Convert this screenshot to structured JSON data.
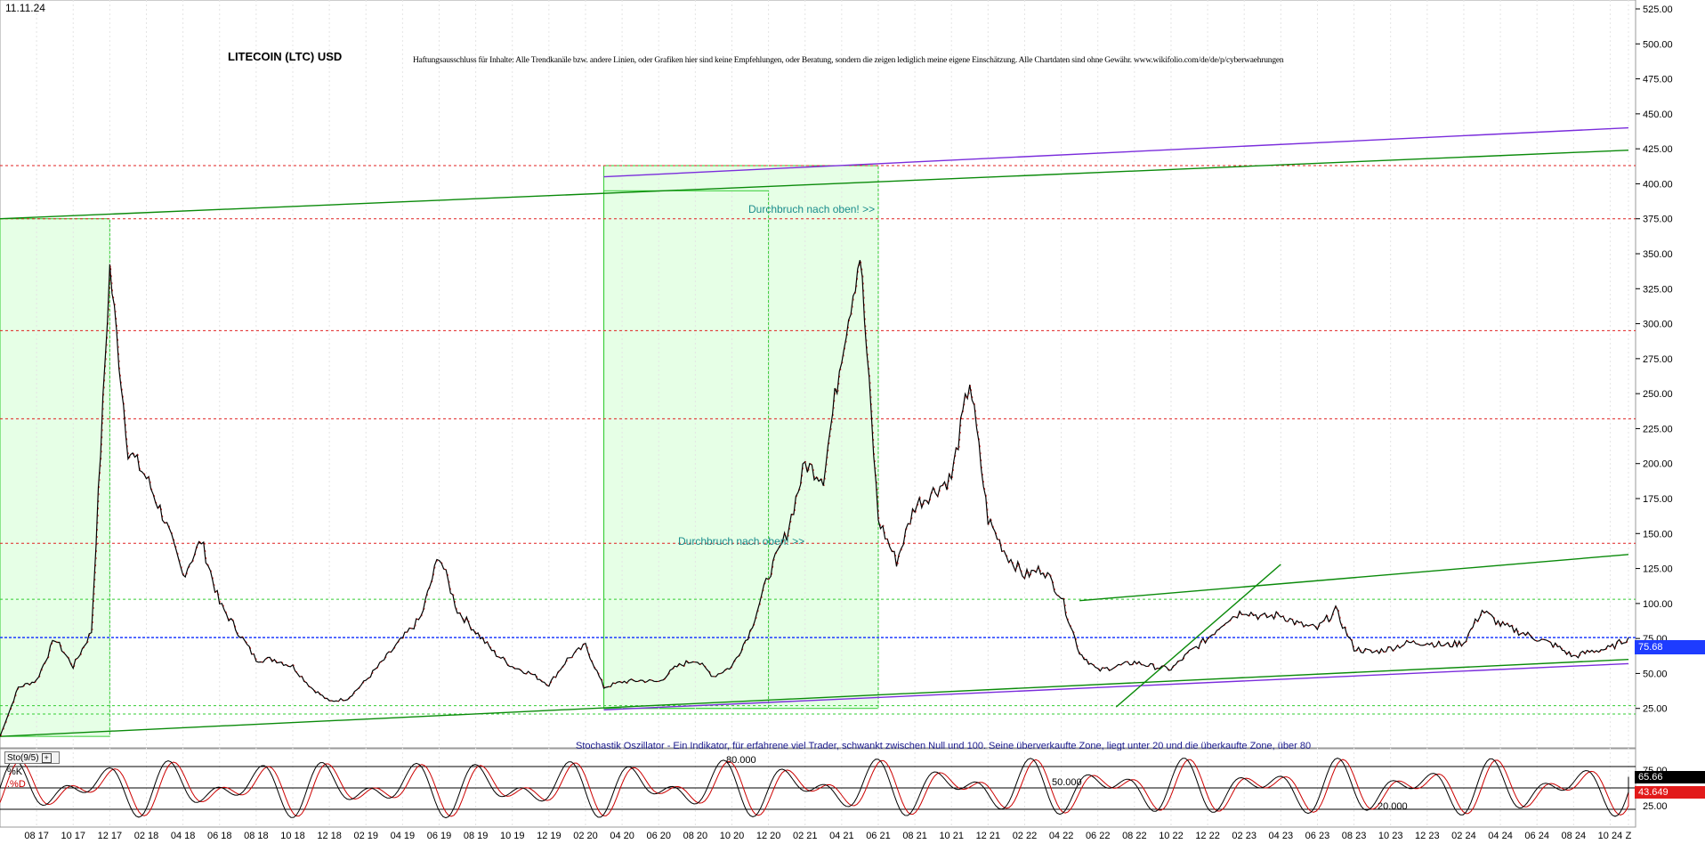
{
  "date_label": "11.11.24",
  "title": "LITECOIN (LTC) USD",
  "disclaimer": "Haftungsausschluss für Inhalte: Alle Trendkanäle bzw. andere Linien, oder Grafiken hier sind keine Empfehlungen, oder Beratung, sondern die zeigen lediglich meine eigene Einschätzung. Alle Chartdaten sind ohne Gewähr. www.wikifolio.com/de/de/p/cyberwaehrungen",
  "annotations": {
    "breakout_top": "Durchbruch nach oben! >>",
    "breakout_mid": "Durchbruch nach oben! >>",
    "oscillator_note": "Stochastik Oszillator - Ein Indikator, für erfahrene viel Trader, schwankt zwischen Null und 100. Seine überverkaufte Zone, liegt unter 20 und die überkaufte Zone, über 80"
  },
  "indicator": {
    "name": "Sto(9/5)",
    "k_label": "%K",
    "d_label": ".%D",
    "levels_labels": [
      "80.000",
      "50.000",
      "20.000"
    ],
    "k_value": "65.66",
    "d_value": "43.649"
  },
  "last_price_label": "75.68",
  "colors": {
    "candles": "#000000",
    "candle_accent": "#cc0000",
    "channel_green": "#0a8a0a",
    "channel_purple": "#7a2cdc",
    "support_dotted_blue": "#1e3cff",
    "resistance_dotted_red": "#e02020",
    "zone_fill": "#e6ffe6",
    "zone_border": "#33cc33"
  },
  "chart_data": {
    "type": "line",
    "title": "LITECOIN (LTC) USD",
    "xlabel": "",
    "ylabel": "",
    "ylim": [
      0,
      525
    ],
    "y_ticks": [
      25,
      50,
      75,
      100,
      125,
      150,
      175,
      200,
      225,
      250,
      275,
      300,
      325,
      350,
      375,
      400,
      425,
      450,
      475,
      500,
      525
    ],
    "y_tick_labels": [
      "25.00",
      "50.00",
      "75.00",
      "100.00",
      "125.00",
      "150.00",
      "175.00",
      "200.00",
      "225.00",
      "250.00",
      "275.00",
      "300.00",
      "325.00",
      "350.00",
      "375.00",
      "400.00",
      "425.00",
      "450.00",
      "475.00",
      "500.00",
      "525.00"
    ],
    "x_tick_labels": [
      "08 17",
      "10 17",
      "12 17",
      "02 18",
      "04 18",
      "06 18",
      "08 18",
      "10 18",
      "12 18",
      "02 19",
      "04 19",
      "06 19",
      "08 19",
      "10 19",
      "12 19",
      "02 20",
      "04 20",
      "06 20",
      "08 20",
      "10 20",
      "12 20",
      "02 21",
      "04 21",
      "06 21",
      "08 21",
      "10 21",
      "12 21",
      "02 22",
      "04 22",
      "06 22",
      "08 22",
      "10 22",
      "12 22",
      "02 23",
      "04 23",
      "06 23",
      "08 23",
      "10 23",
      "12 23",
      "02 24",
      "04 24",
      "06 24",
      "08 24",
      "10 24",
      "Z"
    ],
    "x_domain": [
      "2017-06",
      "2024-11"
    ],
    "grid": true,
    "series": [
      {
        "kind": "price",
        "points": [
          [
            "2017-06",
            5
          ],
          [
            "2017-07",
            40
          ],
          [
            "2017-08",
            45
          ],
          [
            "2017-09",
            75
          ],
          [
            "2017-10",
            55
          ],
          [
            "2017-11",
            80
          ],
          [
            "2017-12",
            340
          ],
          [
            "2018-01",
            210
          ],
          [
            "2018-02",
            190
          ],
          [
            "2018-03",
            160
          ],
          [
            "2018-04",
            120
          ],
          [
            "2018-05",
            145
          ],
          [
            "2018-06",
            100
          ],
          [
            "2018-07",
            80
          ],
          [
            "2018-08",
            60
          ],
          [
            "2018-09",
            60
          ],
          [
            "2018-10",
            55
          ],
          [
            "2018-11",
            40
          ],
          [
            "2018-12",
            30
          ],
          [
            "2019-01",
            32
          ],
          [
            "2019-02",
            45
          ],
          [
            "2019-03",
            60
          ],
          [
            "2019-04",
            75
          ],
          [
            "2019-05",
            90
          ],
          [
            "2019-06",
            135
          ],
          [
            "2019-07",
            95
          ],
          [
            "2019-08",
            80
          ],
          [
            "2019-09",
            65
          ],
          [
            "2019-10",
            55
          ],
          [
            "2019-11",
            50
          ],
          [
            "2019-12",
            42
          ],
          [
            "2020-01",
            60
          ],
          [
            "2020-02",
            70
          ],
          [
            "2020-03",
            40
          ],
          [
            "2020-04",
            44
          ],
          [
            "2020-05",
            45
          ],
          [
            "2020-06",
            44
          ],
          [
            "2020-07",
            55
          ],
          [
            "2020-08",
            60
          ],
          [
            "2020-09",
            48
          ],
          [
            "2020-10",
            55
          ],
          [
            "2020-11",
            80
          ],
          [
            "2020-12",
            120
          ],
          [
            "2021-01",
            150
          ],
          [
            "2021-02",
            200
          ],
          [
            "2021-03",
            190
          ],
          [
            "2021-04",
            280
          ],
          [
            "2021-05",
            350
          ],
          [
            "2021-06",
            160
          ],
          [
            "2021-07",
            130
          ],
          [
            "2021-08",
            170
          ],
          [
            "2021-09",
            180
          ],
          [
            "2021-10",
            190
          ],
          [
            "2021-11",
            260
          ],
          [
            "2021-12",
            160
          ],
          [
            "2022-01",
            135
          ],
          [
            "2022-02",
            120
          ],
          [
            "2022-03",
            125
          ],
          [
            "2022-04",
            105
          ],
          [
            "2022-05",
            65
          ],
          [
            "2022-06",
            52
          ],
          [
            "2022-07",
            55
          ],
          [
            "2022-08",
            58
          ],
          [
            "2022-09",
            55
          ],
          [
            "2022-10",
            53
          ],
          [
            "2022-11",
            65
          ],
          [
            "2022-12",
            75
          ],
          [
            "2023-01",
            88
          ],
          [
            "2023-02",
            95
          ],
          [
            "2023-03",
            90
          ],
          [
            "2023-04",
            92
          ],
          [
            "2023-05",
            85
          ],
          [
            "2023-06",
            82
          ],
          [
            "2023-07",
            95
          ],
          [
            "2023-08",
            68
          ],
          [
            "2023-09",
            65
          ],
          [
            "2023-10",
            68
          ],
          [
            "2023-11",
            72
          ],
          [
            "2023-12",
            72
          ],
          [
            "2024-01",
            70
          ],
          [
            "2024-02",
            72
          ],
          [
            "2024-03",
            95
          ],
          [
            "2024-04",
            85
          ],
          [
            "2024-05",
            80
          ],
          [
            "2024-06",
            75
          ],
          [
            "2024-07",
            70
          ],
          [
            "2024-08",
            62
          ],
          [
            "2024-09",
            66
          ],
          [
            "2024-10",
            68
          ],
          [
            "2024-11",
            75.68
          ]
        ]
      }
    ],
    "horizontal_levels": [
      {
        "style": "dotted-blue",
        "y": 75.68
      },
      {
        "style": "dotted-red",
        "y": 375
      },
      {
        "style": "dotted-red",
        "y": 413
      },
      {
        "style": "dotted-red",
        "y": 295
      },
      {
        "style": "dotted-red",
        "y": 232
      },
      {
        "style": "dotted-red",
        "y": 143
      },
      {
        "style": "dotted-green",
        "y": 103
      },
      {
        "style": "dotted-green",
        "y": 27
      },
      {
        "style": "dotted-green",
        "y": 21
      }
    ],
    "trend_lines": [
      {
        "color": "green",
        "from": [
          "2017-06",
          375
        ],
        "to": [
          "2024-11",
          424
        ]
      },
      {
        "color": "purple",
        "from": [
          "2020-03",
          405
        ],
        "to": [
          "2024-11",
          440
        ]
      },
      {
        "color": "green",
        "from": [
          "2017-06",
          5
        ],
        "to": [
          "2024-11",
          60
        ]
      },
      {
        "color": "purple",
        "from": [
          "2020-03",
          24
        ],
        "to": [
          "2024-11",
          57
        ]
      },
      {
        "color": "green",
        "from": [
          "2022-05",
          102
        ],
        "to": [
          "2024-11",
          135
        ]
      },
      {
        "color": "green",
        "from": [
          "2022-07",
          26
        ],
        "to": [
          "2023-04",
          128
        ]
      }
    ],
    "zones": [
      {
        "from": "2017-06",
        "to": "2017-12",
        "y_from": 5,
        "y_to": 375
      },
      {
        "from": "2020-03",
        "to": "2021-06",
        "y_from": 25,
        "y_to": 413
      },
      {
        "from": "2020-03",
        "to": "2020-12",
        "y_from": 25,
        "y_to": 395
      }
    ],
    "oscillator": {
      "name": "Sto(9/5)",
      "ylim": [
        0,
        100
      ],
      "levels": [
        80,
        50,
        20
      ],
      "right_ticks": [
        "75.00",
        "25.00"
      ],
      "last_k": 65.66,
      "last_d": 43.649
    }
  }
}
